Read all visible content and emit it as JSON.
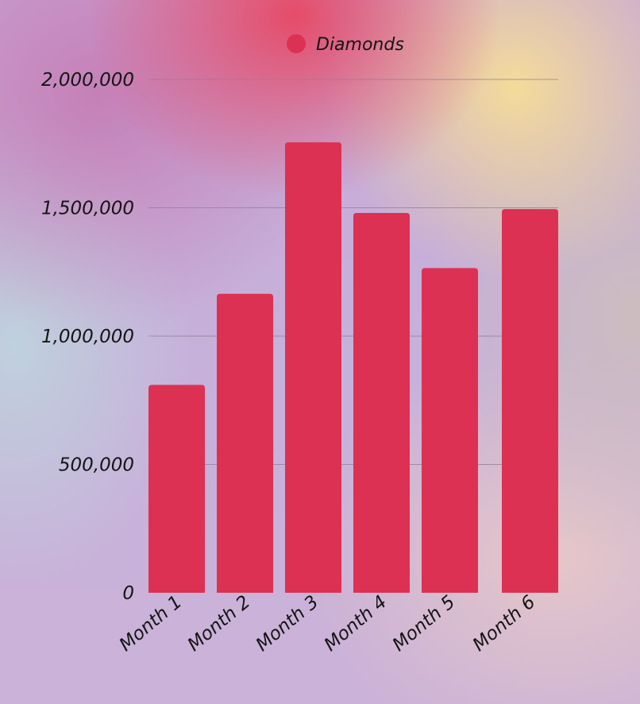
{
  "chart_data": {
    "type": "bar",
    "categories": [
      "Month 1",
      "Month 2",
      "Month 3",
      "Month 4",
      "Month 5",
      "Month 6"
    ],
    "series": [
      {
        "name": "Diamonds",
        "values": [
          810000,
          1165000,
          1755000,
          1480000,
          1265000,
          1495000
        ]
      }
    ],
    "y_ticks": [
      "0",
      "500,000",
      "1,000,000",
      "1,500,000",
      "2,000,000"
    ],
    "ylim": [
      0,
      2000000
    ],
    "grid": true,
    "legend_position": "top-center",
    "bar_color": "#dc3153",
    "title": "",
    "xlabel": "",
    "ylabel": ""
  }
}
